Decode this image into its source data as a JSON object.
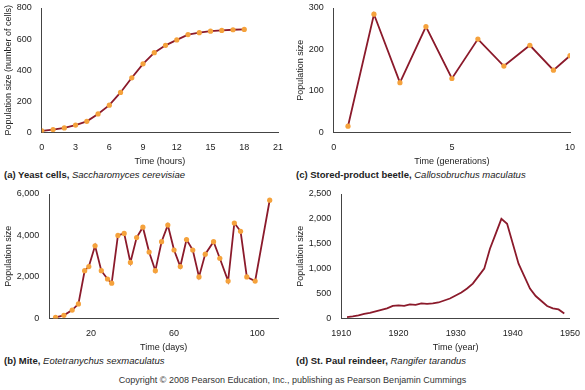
{
  "chart_data": [
    {
      "type": "line",
      "title": "(a) Yeast cells, Saccharomyces cerevisiae",
      "x_label": "Time (hours)",
      "y_label": "Population size (number of cells)",
      "x": [
        0,
        1,
        2,
        3,
        4,
        5,
        6,
        7,
        8,
        9,
        10,
        11,
        12,
        13,
        14,
        15,
        16,
        17,
        18
      ],
      "values": [
        10,
        18,
        29,
        47,
        71,
        119,
        175,
        257,
        351,
        441,
        513,
        560,
        595,
        629,
        641,
        651,
        656,
        660,
        662
      ],
      "color": "#8b1a2b",
      "marker": "circle",
      "xlim": [
        0,
        21
      ],
      "xticks": [
        0,
        3,
        6,
        9,
        12,
        15,
        18,
        21
      ],
      "ylim": [
        0,
        800
      ],
      "yticks": [
        0,
        200,
        400,
        600,
        800
      ],
      "grid": false
    },
    {
      "type": "line",
      "title": "(b) Mite, Eotetranychus sexmaculatus",
      "x_label": "Time (days)",
      "y_label": "Population size",
      "x": [
        3,
        7,
        11,
        14,
        17,
        19,
        22,
        25,
        28,
        30,
        33,
        36,
        39,
        42,
        45,
        48,
        51,
        54,
        57,
        60,
        63,
        66,
        69,
        72,
        75,
        79,
        82,
        86,
        89,
        92,
        95,
        99,
        106
      ],
      "values": [
        50,
        150,
        400,
        700,
        2300,
        2500,
        3500,
        2300,
        1900,
        1700,
        4000,
        4100,
        2700,
        3900,
        4400,
        3200,
        2300,
        3700,
        4500,
        3300,
        2500,
        3800,
        3300,
        2000,
        3100,
        3700,
        2900,
        1800,
        4600,
        4200,
        2000,
        1800,
        5700
      ],
      "color": "#8b1a2b",
      "marker": "circle",
      "xlim": [
        0,
        110
      ],
      "xticks": [
        20,
        60,
        100
      ],
      "ylim": [
        0,
        6000
      ],
      "yticks": [
        0,
        {
          "value": 2000,
          "label": "2,000"
        },
        {
          "value": 4000,
          "label": "4,000"
        },
        {
          "value": 6000,
          "label": "6,000"
        }
      ],
      "grid": false
    },
    {
      "type": "line",
      "title": "(c) Stored-product beetle, Callosobruchus maculatus",
      "x_label": "Time (generations)",
      "y_label": "Population size",
      "x": [
        0.6,
        1.7,
        2.8,
        3.9,
        5,
        6.1,
        7.2,
        8.3,
        9.3,
        10
      ],
      "values": [
        15,
        285,
        120,
        255,
        130,
        225,
        160,
        210,
        150,
        185
      ],
      "color": "#8b1a2b",
      "marker": "circle",
      "xlim": [
        0,
        10
      ],
      "xticks": [
        0,
        5,
        10
      ],
      "ylim": [
        0,
        300
      ],
      "yticks": [
        0,
        100,
        200,
        300
      ],
      "grid": false
    },
    {
      "type": "line",
      "title": "(d) St. Paul reindeer, Rangifer tarandus",
      "x_label": "Time (year)",
      "y_label": "Population size",
      "x": [
        1911,
        1912,
        1913,
        1914,
        1915,
        1916,
        1917,
        1918,
        1919,
        1920,
        1921,
        1922,
        1923,
        1924,
        1925,
        1926,
        1927,
        1928,
        1929,
        1930,
        1931,
        1932,
        1933,
        1934,
        1935,
        1936,
        1937,
        1938,
        1939,
        1940,
        1941,
        1942,
        1943,
        1944,
        1945,
        1946,
        1947,
        1948,
        1949
      ],
      "values": [
        25,
        40,
        60,
        90,
        110,
        140,
        170,
        200,
        250,
        260,
        250,
        280,
        270,
        300,
        290,
        300,
        320,
        360,
        400,
        460,
        520,
        600,
        700,
        850,
        1000,
        1400,
        1700,
        2000,
        1900,
        1500,
        1100,
        850,
        600,
        450,
        350,
        250,
        200,
        180,
        100
      ],
      "color": "#8b1a2b",
      "marker": "none",
      "xlim": [
        1910,
        1950
      ],
      "xticks": [
        1910,
        1920,
        1930,
        1940,
        1950
      ],
      "ylim": [
        0,
        2500
      ],
      "yticks": [
        0,
        {
          "value": 500,
          "label": "500"
        },
        {
          "value": 1000,
          "label": "1,000"
        },
        {
          "value": 1500,
          "label": "1,500"
        },
        {
          "value": 2000,
          "label": "2,000"
        },
        {
          "value": 2500,
          "label": "2,500"
        }
      ],
      "grid": false
    }
  ],
  "footer": "Copyright © 2008 Pearson Education, Inc., publishing as Pearson Benjamin Cummings"
}
